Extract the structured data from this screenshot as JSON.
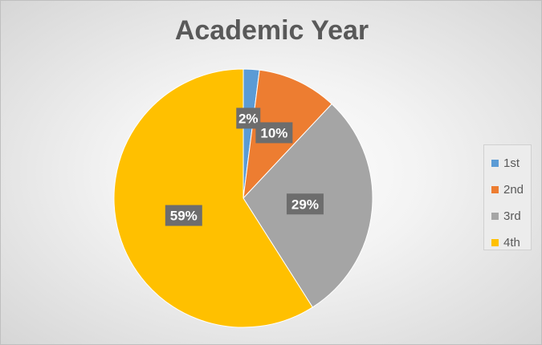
{
  "chart_data": {
    "type": "pie",
    "title": "Academic Year",
    "categories": [
      "1st",
      "2nd",
      "3rd",
      "4th"
    ],
    "values": [
      2,
      10,
      29,
      59
    ],
    "value_labels": [
      "2%",
      "10%",
      "29%",
      "59%"
    ],
    "colors": [
      "#5b9bd5",
      "#ed7d31",
      "#a5a5a5",
      "#ffc000"
    ],
    "legend_position": "right",
    "start_angle": "12 o'clock",
    "direction": "clockwise"
  }
}
